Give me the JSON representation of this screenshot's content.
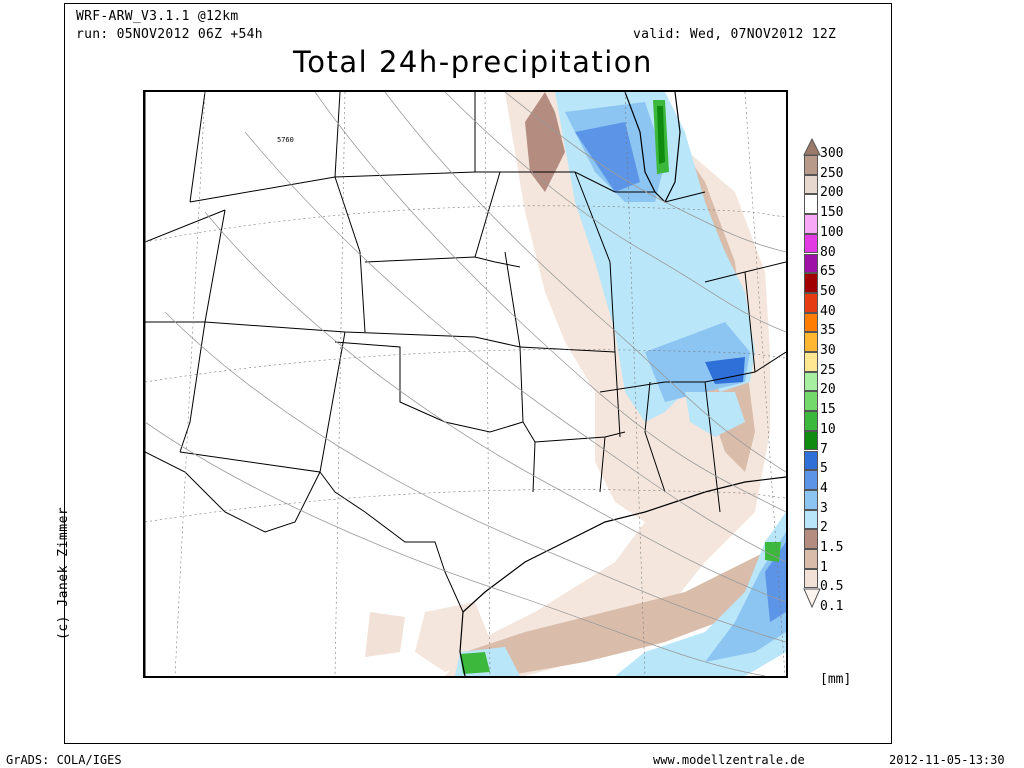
{
  "header": {
    "model": "WRF-ARW_V3.1.1 @12km",
    "run": "run: 05NOV2012 06Z +54h",
    "valid": "valid: Wed, 07NOV2012 12Z",
    "title": "Total 24h-precipitation"
  },
  "map": {
    "contour_label": "5760",
    "credit": "(c) Janek Zimmer"
  },
  "legend": {
    "unit": "[mm]",
    "levels": [
      {
        "label": "300",
        "color": "#9c7a6a"
      },
      {
        "label": "250",
        "color": "#b89a8a"
      },
      {
        "label": "200",
        "color": "#e6d8cf"
      },
      {
        "label": "150",
        "color": "#ffffff"
      },
      {
        "label": "100",
        "color": "#f7a8f7"
      },
      {
        "label": "80",
        "color": "#e33be3"
      },
      {
        "label": "65",
        "color": "#9e12a8"
      },
      {
        "label": "50",
        "color": "#a00000"
      },
      {
        "label": "40",
        "color": "#e63c12"
      },
      {
        "label": "35",
        "color": "#ff7d00"
      },
      {
        "label": "30",
        "color": "#ffb732"
      },
      {
        "label": "25",
        "color": "#ffe690"
      },
      {
        "label": "20",
        "color": "#a8eea0"
      },
      {
        "label": "15",
        "color": "#72d96a"
      },
      {
        "label": "10",
        "color": "#3cb83c"
      },
      {
        "label": "7",
        "color": "#0f8c0f"
      },
      {
        "label": "5",
        "color": "#2f6fd8"
      },
      {
        "label": "4",
        "color": "#5c95e8"
      },
      {
        "label": "3",
        "color": "#8cc4f2"
      },
      {
        "label": "2",
        "color": "#b9e6f8"
      },
      {
        "label": "1.5",
        "color": "#b48c80"
      },
      {
        "label": "1",
        "color": "#dabcaa"
      },
      {
        "label": "0.5",
        "color": "#f1e1d6"
      },
      {
        "label": "0.1",
        "color": "#fbf3ee"
      }
    ]
  },
  "footer": {
    "left": "GrADS: COLA/IGES",
    "center": "www.modellzentrale.de",
    "right": "2012-11-05-13:30"
  }
}
